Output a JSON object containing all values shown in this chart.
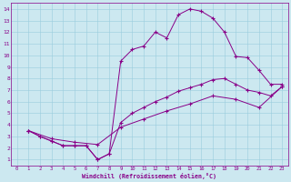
{
  "bg_color": "#cce8f0",
  "line_color": "#880088",
  "xlabel": "Windchill (Refroidissement éolien,°C)",
  "xlim": [
    -0.5,
    23.5
  ],
  "ylim": [
    0.5,
    14.5
  ],
  "xticks": [
    0,
    1,
    2,
    3,
    4,
    5,
    6,
    7,
    8,
    9,
    10,
    11,
    12,
    13,
    14,
    15,
    16,
    17,
    18,
    19,
    20,
    21,
    22,
    23
  ],
  "yticks": [
    1,
    2,
    3,
    4,
    5,
    6,
    7,
    8,
    9,
    10,
    11,
    12,
    13,
    14
  ],
  "line1_x": [
    1,
    2,
    3,
    4,
    5,
    6,
    7,
    8,
    9,
    10,
    11,
    12,
    13,
    14,
    15,
    16,
    17,
    18,
    19,
    20,
    21,
    22,
    23
  ],
  "line1_y": [
    3.5,
    3.0,
    2.6,
    2.2,
    2.2,
    2.2,
    1.0,
    1.5,
    9.5,
    10.5,
    10.8,
    12.0,
    11.5,
    13.5,
    14.0,
    13.8,
    13.2,
    12.0,
    9.9,
    9.8,
    8.7,
    7.5,
    7.5
  ],
  "line2_x": [
    1,
    2,
    3,
    4,
    5,
    6,
    7,
    8,
    9,
    10,
    11,
    12,
    13,
    14,
    15,
    16,
    17,
    18,
    19,
    20,
    21,
    22,
    23
  ],
  "line2_y": [
    3.5,
    3.0,
    2.6,
    2.2,
    2.2,
    2.2,
    1.0,
    1.5,
    4.2,
    5.0,
    5.5,
    6.0,
    6.4,
    6.9,
    7.2,
    7.5,
    7.9,
    8.0,
    7.5,
    7.0,
    6.8,
    6.5,
    7.3
  ],
  "line3_x": [
    1,
    3,
    5,
    7,
    9,
    11,
    13,
    15,
    17,
    19,
    21,
    23
  ],
  "line3_y": [
    3.5,
    2.8,
    2.5,
    2.3,
    3.8,
    4.5,
    5.2,
    5.8,
    6.5,
    6.2,
    5.5,
    7.3
  ]
}
